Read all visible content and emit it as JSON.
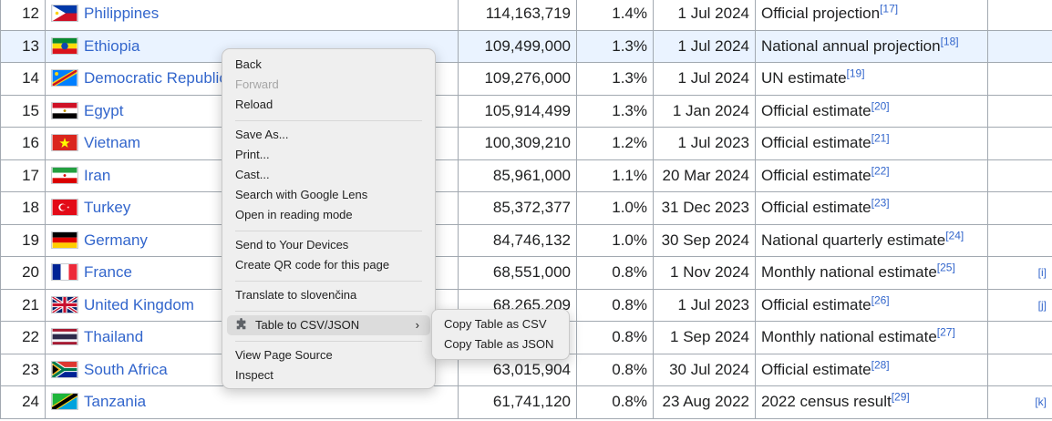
{
  "table": {
    "rows": [
      {
        "rank": "12",
        "flag": "ph",
        "country": "Philippines",
        "population": "114,163,719",
        "percent": "1.4%",
        "date": "1 Jul 2024",
        "source": "Official projection",
        "ref": "[17]",
        "notes": ""
      },
      {
        "rank": "13",
        "flag": "et",
        "country": "Ethiopia",
        "population": "109,499,000",
        "percent": "1.3%",
        "date": "1 Jul 2024",
        "source": "National annual projection",
        "ref": "[18]",
        "notes": ""
      },
      {
        "rank": "14",
        "flag": "cd",
        "country": "Democratic Republic",
        "population": "109,276,000",
        "percent": "1.3%",
        "date": "1 Jul 2024",
        "source": "UN estimate",
        "ref": "[19]",
        "notes": ""
      },
      {
        "rank": "15",
        "flag": "eg",
        "country": "Egypt",
        "population": "105,914,499",
        "percent": "1.3%",
        "date": "1 Jan 2024",
        "source": "Official estimate",
        "ref": "[20]",
        "notes": ""
      },
      {
        "rank": "16",
        "flag": "vn",
        "country": "Vietnam",
        "population": "100,309,210",
        "percent": "1.2%",
        "date": "1 Jul 2023",
        "source": "Official estimate",
        "ref": "[21]",
        "notes": ""
      },
      {
        "rank": "17",
        "flag": "ir",
        "country": "Iran",
        "population": "85,961,000",
        "percent": "1.1%",
        "date": "20 Mar 2024",
        "source": "Official estimate",
        "ref": "[22]",
        "notes": ""
      },
      {
        "rank": "18",
        "flag": "tr",
        "country": "Turkey",
        "population": "85,372,377",
        "percent": "1.0%",
        "date": "31 Dec 2023",
        "source": "Official estimate",
        "ref": "[23]",
        "notes": ""
      },
      {
        "rank": "19",
        "flag": "de",
        "country": "Germany",
        "population": "84,746,132",
        "percent": "1.0%",
        "date": "30 Sep 2024",
        "source": "National quarterly estimate",
        "ref": "[24]",
        "notes": ""
      },
      {
        "rank": "20",
        "flag": "fr",
        "country": "France",
        "population": "68,551,000",
        "percent": "0.8%",
        "date": "1 Nov 2024",
        "source": "Monthly national estimate",
        "ref": "[25]",
        "notes": "[i]"
      },
      {
        "rank": "21",
        "flag": "gb",
        "country": "United Kingdom",
        "population": "68,265,209",
        "percent": "0.8%",
        "date": "1 Jul 2023",
        "source": "Official estimate",
        "ref": "[26]",
        "notes": "[j]"
      },
      {
        "rank": "22",
        "flag": "th",
        "country": "Thailand",
        "population": "",
        "percent": "0.8%",
        "date": "1 Sep 2024",
        "source": "Monthly national estimate",
        "ref": "[27]",
        "notes": ""
      },
      {
        "rank": "23",
        "flag": "za",
        "country": "South Africa",
        "population": "63,015,904",
        "percent": "0.8%",
        "date": "30 Jul 2024",
        "source": "Official estimate",
        "ref": "[28]",
        "notes": ""
      },
      {
        "rank": "24",
        "flag": "tz",
        "country": "Tanzania",
        "population": "61,741,120",
        "percent": "0.8%",
        "date": "23 Aug 2022",
        "source": "2022 census result",
        "ref": "[29]",
        "notes": "[k]"
      }
    ]
  },
  "context_menu": {
    "back": "Back",
    "forward": "Forward",
    "reload": "Reload",
    "save_as": "Save As...",
    "print": "Print...",
    "cast": "Cast...",
    "search_lens": "Search with Google Lens",
    "reading_mode": "Open in reading mode",
    "send_devices": "Send to Your Devices",
    "qr_code": "Create QR code for this page",
    "translate": "Translate to slovenčina",
    "table_csv_json": "Table to CSV/JSON",
    "view_source": "View Page Source",
    "inspect": "Inspect"
  },
  "submenu": {
    "copy_csv": "Copy Table as CSV",
    "copy_json": "Copy Table as JSON"
  },
  "icons": {
    "extension": "puzzle-icon",
    "submenu_arrow": "chevron-right-icon"
  },
  "colors": {
    "link": "#3366cc",
    "row_highlight": "#eaf3ff",
    "menu_bg": "#efefef"
  }
}
